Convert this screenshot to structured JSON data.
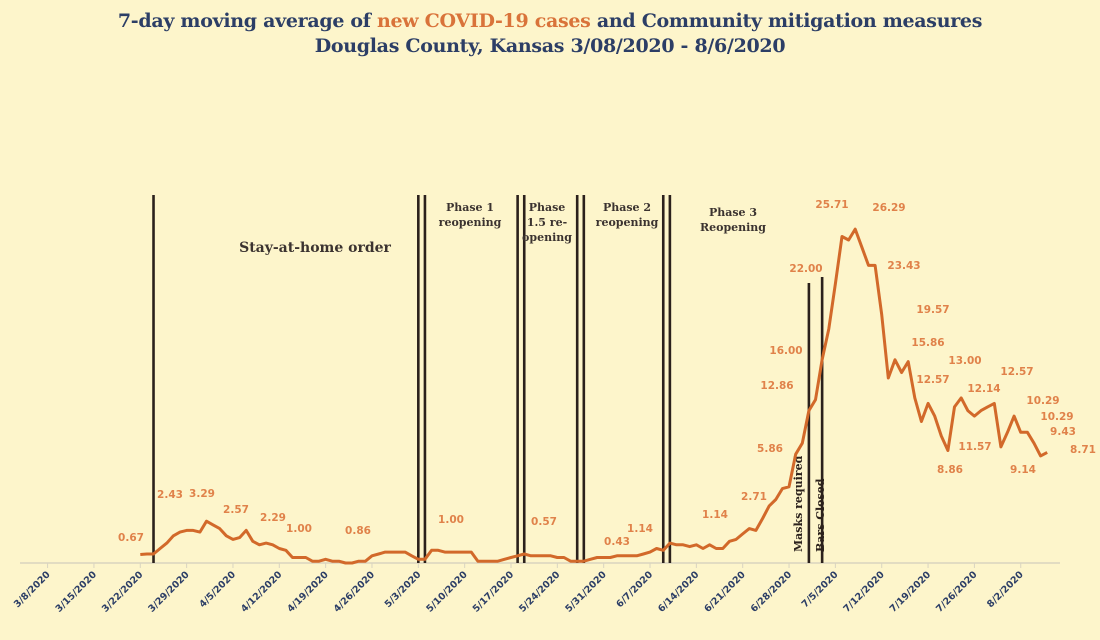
{
  "title": {
    "part1": "7-day moving average of ",
    "highlight": "new COVID-19 cases",
    "part2": " and Community mitigation measures",
    "line2": "Douglas County, Kansas 3/08/2020 - 8/6/2020"
  },
  "colors": {
    "background": "#fdf5cb",
    "title": "#2c3e66",
    "highlight": "#d9733a",
    "series": "#d2692a",
    "data_label": "#e0824a",
    "marker_line": "#2b211c",
    "axis_label": "#2c3e66"
  },
  "chart_data": {
    "type": "line",
    "title": "7-day moving average of new COVID-19 cases and Community mitigation measures Douglas County, Kansas 3/08/2020 - 8/6/2020",
    "xlabel": "",
    "ylabel": "",
    "ylim": [
      0,
      30
    ],
    "grid": false,
    "legend": "none",
    "x_ticks": [
      "3/8/2020",
      "3/15/2020",
      "3/22/2020",
      "3/29/2020",
      "4/5/2020",
      "4/12/2020",
      "4/19/2020",
      "4/26/2020",
      "5/3/2020",
      "5/10/2020",
      "5/17/2020",
      "5/24/2020",
      "5/31/2020",
      "6/7/2020",
      "6/14/2020",
      "6/21/2020",
      "6/28/2020",
      "7/5/2020",
      "7/12/2020",
      "7/19/2020",
      "7/26/2020",
      "8/2/2020"
    ],
    "x": [
      "3/22/2020",
      "3/23/2020",
      "3/24/2020",
      "3/25/2020",
      "3/26/2020",
      "3/27/2020",
      "3/28/2020",
      "3/29/2020",
      "3/30/2020",
      "3/31/2020",
      "4/1/2020",
      "4/2/2020",
      "4/3/2020",
      "4/4/2020",
      "4/5/2020",
      "4/6/2020",
      "4/7/2020",
      "4/8/2020",
      "4/9/2020",
      "4/10/2020",
      "4/11/2020",
      "4/12/2020",
      "4/13/2020",
      "4/14/2020",
      "4/15/2020",
      "4/16/2020",
      "4/17/2020",
      "4/18/2020",
      "4/19/2020",
      "4/20/2020",
      "4/21/2020",
      "4/22/2020",
      "4/23/2020",
      "4/24/2020",
      "4/25/2020",
      "4/26/2020",
      "4/27/2020",
      "4/28/2020",
      "4/29/2020",
      "4/30/2020",
      "5/1/2020",
      "5/2/2020",
      "5/3/2020",
      "5/4/2020",
      "5/5/2020",
      "5/6/2020",
      "5/7/2020",
      "5/8/2020",
      "5/9/2020",
      "5/10/2020",
      "5/11/2020",
      "5/12/2020",
      "5/13/2020",
      "5/14/2020",
      "5/15/2020",
      "5/16/2020",
      "5/17/2020",
      "5/18/2020",
      "5/19/2020",
      "5/20/2020",
      "5/21/2020",
      "5/22/2020",
      "5/23/2020",
      "5/24/2020",
      "5/25/2020",
      "5/26/2020",
      "5/27/2020",
      "5/28/2020",
      "5/29/2020",
      "5/30/2020",
      "5/31/2020",
      "6/1/2020",
      "6/2/2020",
      "6/3/2020",
      "6/4/2020",
      "6/5/2020",
      "6/6/2020",
      "6/7/2020",
      "6/8/2020",
      "6/9/2020",
      "6/10/2020",
      "6/11/2020",
      "6/12/2020",
      "6/13/2020",
      "6/14/2020",
      "6/15/2020",
      "6/16/2020",
      "6/17/2020",
      "6/18/2020",
      "6/19/2020",
      "6/20/2020",
      "6/21/2020",
      "6/22/2020",
      "6/23/2020",
      "6/24/2020",
      "6/25/2020",
      "6/26/2020",
      "6/27/2020",
      "6/28/2020",
      "6/29/2020",
      "6/30/2020",
      "7/1/2020",
      "7/2/2020",
      "7/3/2020",
      "7/4/2020",
      "7/5/2020",
      "7/6/2020",
      "7/7/2020",
      "7/8/2020",
      "7/9/2020",
      "7/10/2020",
      "7/11/2020",
      "7/12/2020",
      "7/13/2020",
      "7/14/2020",
      "7/15/2020",
      "7/16/2020",
      "7/17/2020",
      "7/18/2020",
      "7/19/2020",
      "7/20/2020",
      "7/21/2020",
      "7/22/2020",
      "7/23/2020",
      "7/24/2020",
      "7/25/2020",
      "7/26/2020",
      "7/27/2020",
      "7/28/2020",
      "7/29/2020",
      "7/30/2020",
      "7/31/2020",
      "8/1/2020",
      "8/2/2020",
      "8/3/2020",
      "8/4/2020",
      "8/5/2020",
      "8/6/2020"
    ],
    "series": [
      {
        "values": [
          0.67,
          0.71,
          0.71,
          1.14,
          1.57,
          2.14,
          2.43,
          2.57,
          2.57,
          2.43,
          3.29,
          3.0,
          2.71,
          2.14,
          1.86,
          2.0,
          2.57,
          1.71,
          1.43,
          1.57,
          1.43,
          1.14,
          1.0,
          0.43,
          0.43,
          0.43,
          0.14,
          0.14,
          0.29,
          0.14,
          0.14,
          0.0,
          0.0,
          0.14,
          0.14,
          0.57,
          0.71,
          0.86,
          0.86,
          0.86,
          0.86,
          0.57,
          0.29,
          0.29,
          1.0,
          1.0,
          0.86,
          0.86,
          0.86,
          0.86,
          0.86,
          0.14,
          0.14,
          0.14,
          0.14,
          0.29,
          0.43,
          0.57,
          0.71,
          0.57,
          0.57,
          0.57,
          0.57,
          0.43,
          0.43,
          0.14,
          0.14,
          0.14,
          0.29,
          0.43,
          0.43,
          0.43,
          0.57,
          0.57,
          0.57,
          0.57,
          0.71,
          0.86,
          1.14,
          1.0,
          1.57,
          1.43,
          1.43,
          1.29,
          1.43,
          1.14,
          1.43,
          1.14,
          1.14,
          1.71,
          1.86,
          2.29,
          2.71,
          2.57,
          3.5,
          4.5,
          5.0,
          5.86,
          6.0,
          8.57,
          9.43,
          12.0,
          12.86,
          16.0,
          18.43,
          22.0,
          25.71,
          25.43,
          26.29,
          24.86,
          23.43,
          23.43,
          19.57,
          14.57,
          16.0,
          15.0,
          15.86,
          13.0,
          11.14,
          12.57,
          11.57,
          10.0,
          8.86,
          12.29,
          13.0,
          12.0,
          11.57,
          12.0,
          12.29,
          12.57,
          9.14,
          10.29,
          11.57,
          10.29,
          10.29,
          9.43,
          8.43,
          8.71
        ]
      }
    ],
    "data_labels": [
      "0.67",
      "2.43",
      "3.29",
      "2.57",
      "2.29",
      "1.00",
      "0.86",
      "1.00",
      "0.57",
      "0.43",
      "1.14",
      "1.14",
      "2.71",
      "5.86",
      "12.86",
      "16.00",
      "22.00",
      "25.71",
      "26.29",
      "23.43",
      "19.57",
      "15.86",
      "12.57",
      "13.00",
      "12.14",
      "11.57",
      "8.86",
      "12.57",
      "10.29",
      "10.29",
      "9.43",
      "9.14",
      "8.71"
    ],
    "markers": [
      {
        "dates": [
          "3/24/2020"
        ]
      },
      {
        "dates": [
          "5/3/2020",
          "5/4/2020"
        ]
      },
      {
        "dates": [
          "5/18/2020",
          "5/19/2020"
        ]
      },
      {
        "dates": [
          "5/27/2020",
          "5/28/2020"
        ]
      },
      {
        "dates": [
          "6/9/2020",
          "6/10/2020"
        ]
      },
      {
        "dates": [
          "7/1/2020"
        ],
        "label": "Masks required"
      },
      {
        "dates": [
          "7/3/2020"
        ],
        "label": "Bars Closed"
      }
    ],
    "annotations": [
      {
        "lines": [
          "Stay-at-home order"
        ]
      },
      {
        "lines": [
          "Phase 1",
          "reopening"
        ]
      },
      {
        "lines": [
          "Phase",
          "1.5 re-",
          "opening"
        ]
      },
      {
        "lines": [
          "Phase 2",
          "reopening"
        ]
      },
      {
        "lines": [
          "Phase 3",
          "Reopening"
        ]
      }
    ]
  }
}
